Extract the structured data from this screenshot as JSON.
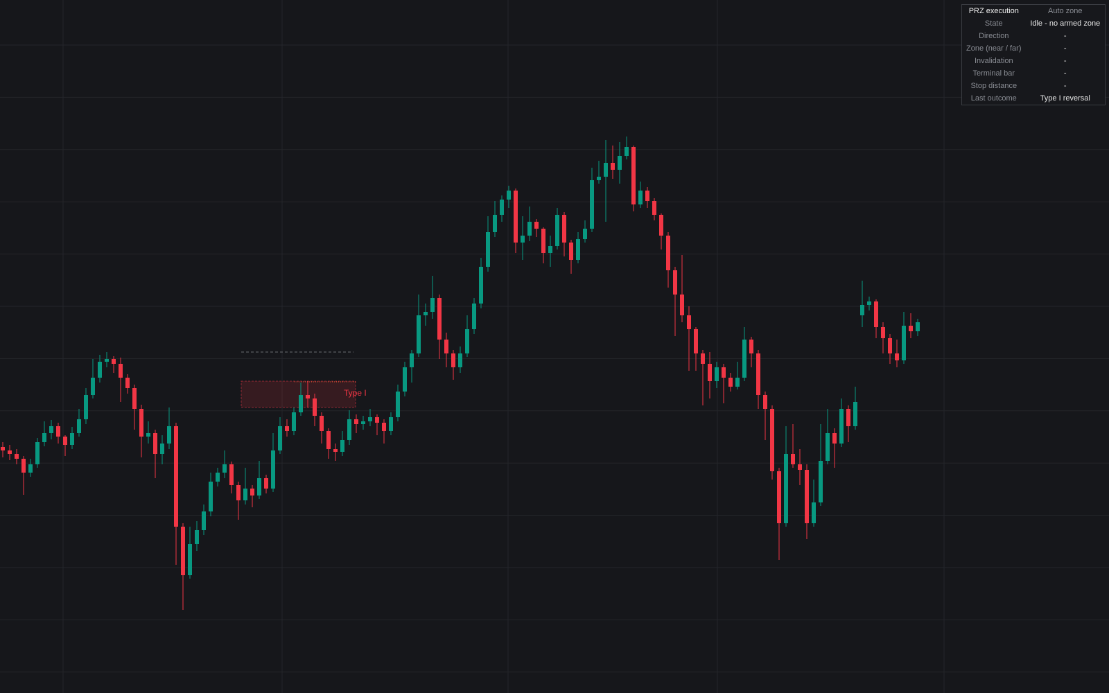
{
  "chart_data": {
    "type": "candlestick",
    "ylim": [
      0,
      1000
    ],
    "up_color": "#089981",
    "down_color": "#f23645",
    "series": [
      {
        "values": [
          [
            355,
            362,
            340,
            350
          ],
          [
            350,
            358,
            336,
            345
          ],
          [
            345,
            352,
            330,
            338
          ],
          [
            338,
            342,
            286,
            318
          ],
          [
            318,
            338,
            312,
            330
          ],
          [
            330,
            368,
            325,
            362
          ],
          [
            362,
            392,
            356,
            375
          ],
          [
            375,
            394,
            366,
            385
          ],
          [
            385,
            390,
            360,
            370
          ],
          [
            370,
            372,
            342,
            358
          ],
          [
            358,
            384,
            352,
            375
          ],
          [
            375,
            410,
            370,
            395
          ],
          [
            395,
            440,
            388,
            430
          ],
          [
            430,
            482,
            425,
            455
          ],
          [
            455,
            488,
            448,
            478
          ],
          [
            478,
            492,
            470,
            482
          ],
          [
            482,
            486,
            462,
            475
          ],
          [
            475,
            484,
            420,
            455
          ],
          [
            455,
            460,
            432,
            440
          ],
          [
            440,
            445,
            380,
            410
          ],
          [
            410,
            416,
            340,
            370
          ],
          [
            370,
            392,
            360,
            375
          ],
          [
            375,
            380,
            310,
            345
          ],
          [
            345,
            372,
            330,
            360
          ],
          [
            360,
            412,
            352,
            385
          ],
          [
            385,
            390,
            185,
            240
          ],
          [
            240,
            245,
            120,
            170
          ],
          [
            170,
            240,
            165,
            215
          ],
          [
            215,
            248,
            205,
            235
          ],
          [
            235,
            272,
            228,
            262
          ],
          [
            262,
            318,
            255,
            305
          ],
          [
            305,
            325,
            298,
            318
          ],
          [
            318,
            350,
            310,
            330
          ],
          [
            330,
            334,
            288,
            300
          ],
          [
            300,
            305,
            250,
            278
          ],
          [
            278,
            325,
            272,
            295
          ],
          [
            295,
            300,
            268,
            285
          ],
          [
            285,
            335,
            280,
            310
          ],
          [
            310,
            315,
            288,
            295
          ],
          [
            295,
            375,
            290,
            350
          ],
          [
            350,
            398,
            345,
            385
          ],
          [
            385,
            395,
            370,
            378
          ],
          [
            378,
            412,
            372,
            405
          ],
          [
            405,
            448,
            400,
            430
          ],
          [
            430,
            450,
            412,
            425
          ],
          [
            425,
            432,
            385,
            400
          ],
          [
            400,
            405,
            360,
            378
          ],
          [
            378,
            382,
            338,
            352
          ],
          [
            352,
            360,
            335,
            348
          ],
          [
            348,
            378,
            342,
            365
          ],
          [
            365,
            408,
            358,
            395
          ],
          [
            395,
            402,
            375,
            388
          ],
          [
            388,
            400,
            380,
            392
          ],
          [
            392,
            410,
            385,
            398
          ],
          [
            398,
            402,
            372,
            390
          ],
          [
            390,
            395,
            360,
            378
          ],
          [
            378,
            405,
            372,
            398
          ],
          [
            398,
            445,
            392,
            435
          ],
          [
            435,
            478,
            428,
            470
          ],
          [
            470,
            495,
            448,
            490
          ],
          [
            490,
            575,
            485,
            545
          ],
          [
            545,
            562,
            530,
            550
          ],
          [
            550,
            602,
            540,
            570
          ],
          [
            570,
            575,
            482,
            510
          ],
          [
            510,
            520,
            470,
            490
          ],
          [
            490,
            495,
            452,
            470
          ],
          [
            470,
            500,
            462,
            490
          ],
          [
            490,
            545,
            485,
            525
          ],
          [
            525,
            570,
            518,
            562
          ],
          [
            562,
            628,
            555,
            615
          ],
          [
            615,
            688,
            608,
            665
          ],
          [
            665,
            710,
            658,
            690
          ],
          [
            690,
            718,
            680,
            712
          ],
          [
            712,
            732,
            700,
            725
          ],
          [
            725,
            728,
            635,
            650
          ],
          [
            650,
            688,
            625,
            660
          ],
          [
            660,
            702,
            652,
            680
          ],
          [
            680,
            684,
            658,
            670
          ],
          [
            670,
            672,
            620,
            635
          ],
          [
            635,
            660,
            615,
            645
          ],
          [
            645,
            700,
            640,
            690
          ],
          [
            690,
            694,
            630,
            650
          ],
          [
            650,
            654,
            605,
            625
          ],
          [
            625,
            665,
            620,
            655
          ],
          [
            655,
            682,
            650,
            670
          ],
          [
            670,
            758,
            665,
            740
          ],
          [
            740,
            768,
            735,
            745
          ],
          [
            745,
            798,
            680,
            765
          ],
          [
            765,
            790,
            742,
            755
          ],
          [
            755,
            795,
            735,
            775
          ],
          [
            775,
            803,
            770,
            788
          ],
          [
            788,
            790,
            695,
            705
          ],
          [
            705,
            738,
            700,
            725
          ],
          [
            725,
            730,
            700,
            710
          ],
          [
            710,
            714,
            682,
            690
          ],
          [
            690,
            692,
            640,
            660
          ],
          [
            660,
            665,
            585,
            610
          ],
          [
            610,
            615,
            515,
            575
          ],
          [
            575,
            632,
            535,
            545
          ],
          [
            545,
            558,
            465,
            525
          ],
          [
            525,
            528,
            465,
            490
          ],
          [
            490,
            495,
            415,
            475
          ],
          [
            475,
            492,
            425,
            450
          ],
          [
            450,
            478,
            440,
            470
          ],
          [
            470,
            475,
            418,
            455
          ],
          [
            455,
            462,
            435,
            442
          ],
          [
            442,
            478,
            438,
            455
          ],
          [
            455,
            528,
            450,
            510
          ],
          [
            510,
            514,
            470,
            490
          ],
          [
            490,
            495,
            410,
            430
          ],
          [
            430,
            435,
            365,
            410
          ],
          [
            410,
            415,
            308,
            320
          ],
          [
            320,
            325,
            192,
            245
          ],
          [
            245,
            385,
            240,
            345
          ],
          [
            345,
            388,
            325,
            330
          ],
          [
            330,
            352,
            300,
            322
          ],
          [
            322,
            330,
            222,
            245
          ],
          [
            245,
            308,
            240,
            275
          ],
          [
            275,
            388,
            270,
            335
          ],
          [
            335,
            410,
            330,
            375
          ],
          [
            375,
            382,
            325,
            360
          ],
          [
            360,
            425,
            355,
            410
          ],
          [
            410,
            415,
            362,
            385
          ],
          [
            385,
            442,
            380,
            420
          ],
          [
            545,
            595,
            528,
            560
          ],
          [
            560,
            572,
            552,
            565
          ],
          [
            565,
            568,
            512,
            528
          ],
          [
            528,
            535,
            490,
            512
          ],
          [
            512,
            518,
            475,
            490
          ],
          [
            490,
            510,
            470,
            480
          ],
          [
            480,
            550,
            475,
            530
          ],
          [
            530,
            548,
            512,
            522
          ],
          [
            522,
            540,
            515,
            535
          ]
        ]
      }
    ],
    "zone": {
      "label": "Type I",
      "top": 450,
      "bottom": 412,
      "x": [
        34.4,
        50.9
      ],
      "color": "#f23645"
    },
    "level": {
      "value": 492,
      "x": [
        34.4,
        50.6
      ]
    }
  },
  "table": {
    "header": [
      "PRZ execution",
      "Auto zone"
    ],
    "rows": [
      [
        "State",
        "Idle - no armed zone"
      ],
      [
        "Direction",
        "-"
      ],
      [
        "Zone (near / far)",
        "-"
      ],
      [
        "Invalidation",
        "-"
      ],
      [
        "Terminal bar",
        "-"
      ],
      [
        "Stop distance",
        "-"
      ],
      [
        "Last outcome",
        "Type I reversal"
      ]
    ]
  }
}
